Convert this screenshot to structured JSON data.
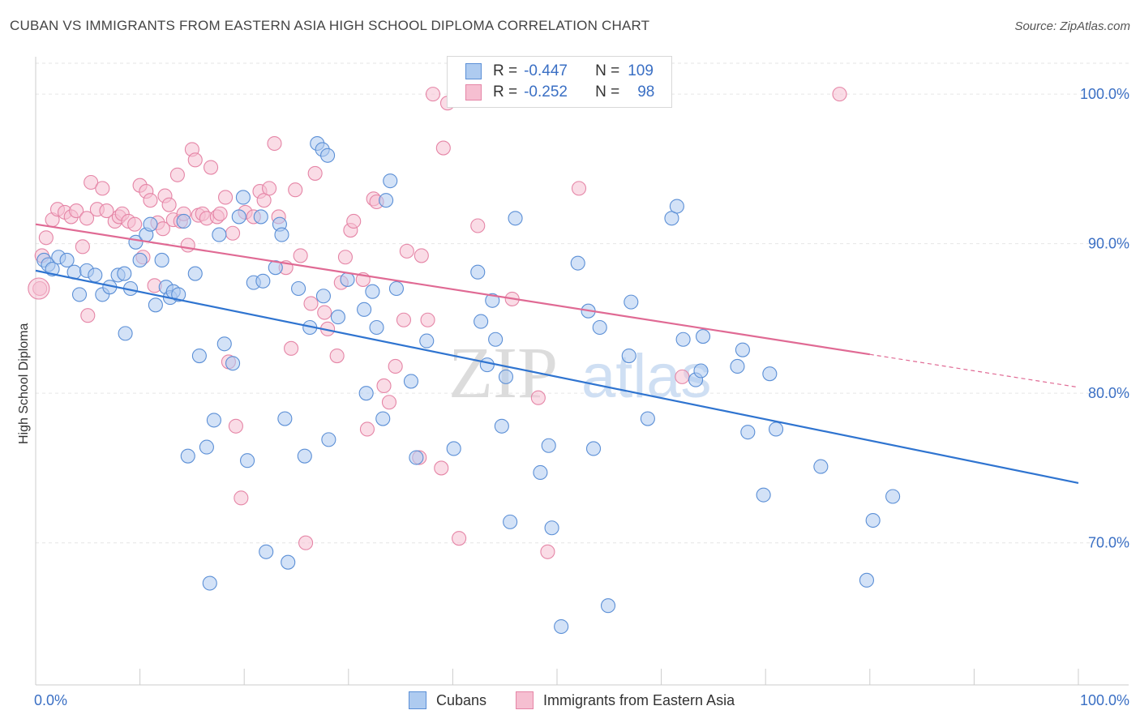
{
  "title": "CUBAN VS IMMIGRANTS FROM EASTERN ASIA HIGH SCHOOL DIPLOMA CORRELATION CHART",
  "source": "Source: ZipAtlas.com",
  "watermark": {
    "zip": "ZIP",
    "atlas": "atlas"
  },
  "legend": {
    "rows": [
      {
        "r_label": "R =",
        "r_value": "-0.447",
        "n_label": "N =",
        "n_value": "109"
      },
      {
        "r_label": "R =",
        "r_value": "-0.252",
        "n_label": "N =",
        "n_value": "98"
      }
    ]
  },
  "colors": {
    "blue_fill": "#aecbf0",
    "blue_stroke": "#5b8fd6",
    "blue_line": "#2f74d0",
    "pink_fill": "#f6bfd1",
    "pink_stroke": "#e585a6",
    "pink_line": "#e06a94",
    "grid": "#e6e6e6",
    "tick_label": "#3a6fc4"
  },
  "chart_data": {
    "type": "scatter",
    "title": "CUBAN VS IMMIGRANTS FROM EASTERN ASIA HIGH SCHOOL DIPLOMA CORRELATION CHART",
    "xlabel": "",
    "ylabel": "High School Diploma",
    "xlim": [
      0,
      100
    ],
    "ylim": [
      60.5,
      102.5
    ],
    "x_tick_labels": [
      "0.0%",
      "100.0%"
    ],
    "y_ticks": [
      70,
      80,
      90,
      100
    ],
    "y_tick_labels": [
      "70.0%",
      "80.0%",
      "90.0%",
      "100.0%"
    ],
    "grid": "horizontal dashed",
    "legend_placement": "bottom-center",
    "series": [
      {
        "name": "Cubans",
        "color": "#aecbf0",
        "trend": {
          "x": [
            0,
            100
          ],
          "y": [
            88.2,
            74.0
          ]
        },
        "points": [
          [
            0.8,
            88.9
          ],
          [
            1.2,
            88.6
          ],
          [
            1.6,
            88.3
          ],
          [
            2.2,
            89.1
          ],
          [
            3.0,
            88.9
          ],
          [
            3.7,
            88.1
          ],
          [
            4.2,
            86.6
          ],
          [
            4.9,
            88.2
          ],
          [
            5.7,
            87.9
          ],
          [
            6.4,
            86.6
          ],
          [
            7.1,
            87.1
          ],
          [
            7.9,
            87.9
          ],
          [
            8.5,
            88.0
          ],
          [
            8.6,
            84.0
          ],
          [
            9.1,
            87.0
          ],
          [
            9.6,
            90.1
          ],
          [
            10.0,
            88.9
          ],
          [
            10.6,
            90.6
          ],
          [
            11.0,
            91.3
          ],
          [
            11.5,
            85.9
          ],
          [
            12.1,
            88.9
          ],
          [
            12.5,
            87.1
          ],
          [
            12.9,
            86.4
          ],
          [
            13.2,
            86.8
          ],
          [
            13.7,
            86.6
          ],
          [
            14.2,
            91.5
          ],
          [
            14.6,
            75.8
          ],
          [
            15.3,
            88.0
          ],
          [
            15.7,
            82.5
          ],
          [
            16.4,
            76.4
          ],
          [
            16.7,
            67.3
          ],
          [
            17.1,
            78.2
          ],
          [
            17.6,
            90.6
          ],
          [
            18.1,
            83.3
          ],
          [
            18.9,
            82.0
          ],
          [
            19.5,
            91.8
          ],
          [
            19.9,
            93.1
          ],
          [
            20.3,
            75.5
          ],
          [
            20.9,
            87.4
          ],
          [
            21.8,
            87.5
          ],
          [
            21.6,
            91.8
          ],
          [
            22.1,
            69.4
          ],
          [
            23.0,
            88.4
          ],
          [
            23.4,
            91.3
          ],
          [
            23.6,
            90.6
          ],
          [
            23.9,
            78.3
          ],
          [
            24.2,
            68.7
          ],
          [
            25.2,
            87.0
          ],
          [
            25.8,
            75.8
          ],
          [
            26.3,
            84.4
          ],
          [
            27.0,
            96.7
          ],
          [
            27.5,
            96.3
          ],
          [
            28.0,
            95.9
          ],
          [
            27.6,
            86.5
          ],
          [
            28.1,
            76.9
          ],
          [
            29.0,
            85.1
          ],
          [
            29.9,
            87.6
          ],
          [
            31.5,
            85.6
          ],
          [
            31.7,
            80.0
          ],
          [
            32.3,
            86.8
          ],
          [
            32.7,
            84.4
          ],
          [
            33.3,
            78.3
          ],
          [
            33.6,
            92.9
          ],
          [
            34.0,
            94.2
          ],
          [
            34.6,
            87.0
          ],
          [
            36.0,
            80.8
          ],
          [
            36.5,
            75.7
          ],
          [
            37.5,
            83.5
          ],
          [
            40.1,
            76.3
          ],
          [
            42.4,
            88.1
          ],
          [
            42.7,
            84.8
          ],
          [
            43.3,
            81.9
          ],
          [
            43.8,
            86.2
          ],
          [
            44.1,
            83.6
          ],
          [
            44.7,
            77.8
          ],
          [
            45.1,
            81.1
          ],
          [
            45.5,
            71.4
          ],
          [
            46.0,
            91.7
          ],
          [
            48.4,
            74.7
          ],
          [
            49.2,
            76.5
          ],
          [
            49.5,
            71.0
          ],
          [
            50.4,
            64.4
          ],
          [
            52.0,
            88.7
          ],
          [
            53.0,
            85.5
          ],
          [
            53.5,
            76.3
          ],
          [
            54.1,
            84.4
          ],
          [
            54.9,
            65.8
          ],
          [
            56.9,
            82.5
          ],
          [
            57.1,
            86.1
          ],
          [
            58.7,
            78.3
          ],
          [
            61.0,
            91.7
          ],
          [
            61.5,
            92.5
          ],
          [
            62.1,
            83.6
          ],
          [
            63.3,
            80.9
          ],
          [
            63.8,
            81.5
          ],
          [
            64.0,
            83.8
          ],
          [
            67.3,
            81.8
          ],
          [
            67.8,
            82.9
          ],
          [
            68.3,
            77.4
          ],
          [
            69.8,
            73.2
          ],
          [
            70.4,
            81.3
          ],
          [
            71.0,
            77.6
          ],
          [
            75.3,
            75.1
          ],
          [
            79.7,
            67.5
          ],
          [
            80.3,
            71.5
          ],
          [
            82.2,
            73.1
          ]
        ]
      },
      {
        "name": "Immigrants from Eastern Asia",
        "color": "#f6bfd1",
        "trend": {
          "x": [
            0,
            80
          ],
          "y": [
            91.3,
            82.6
          ]
        },
        "trend_dashed": {
          "x": [
            80,
            100
          ],
          "y": [
            82.6,
            80.4
          ]
        },
        "points": [
          [
            0.4,
            87.0
          ],
          [
            0.6,
            89.2
          ],
          [
            1.0,
            90.4
          ],
          [
            1.6,
            91.6
          ],
          [
            2.1,
            92.3
          ],
          [
            2.8,
            92.1
          ],
          [
            3.4,
            91.8
          ],
          [
            3.9,
            92.2
          ],
          [
            4.5,
            89.8
          ],
          [
            4.9,
            91.7
          ],
          [
            5.0,
            85.2
          ],
          [
            5.3,
            94.1
          ],
          [
            5.9,
            92.3
          ],
          [
            6.4,
            93.7
          ],
          [
            6.8,
            92.2
          ],
          [
            7.6,
            91.5
          ],
          [
            8.0,
            91.8
          ],
          [
            8.3,
            92.0
          ],
          [
            8.9,
            91.5
          ],
          [
            9.5,
            91.3
          ],
          [
            10.0,
            93.9
          ],
          [
            10.3,
            89.1
          ],
          [
            10.6,
            93.5
          ],
          [
            11.0,
            92.9
          ],
          [
            11.4,
            87.2
          ],
          [
            11.7,
            91.4
          ],
          [
            12.2,
            91.0
          ],
          [
            12.4,
            93.2
          ],
          [
            12.8,
            92.6
          ],
          [
            13.2,
            91.6
          ],
          [
            13.6,
            94.6
          ],
          [
            13.9,
            91.5
          ],
          [
            14.2,
            92.0
          ],
          [
            14.6,
            89.9
          ],
          [
            15.0,
            96.3
          ],
          [
            15.3,
            95.6
          ],
          [
            15.6,
            91.9
          ],
          [
            16.0,
            92.0
          ],
          [
            16.4,
            91.7
          ],
          [
            16.8,
            95.1
          ],
          [
            17.4,
            91.8
          ],
          [
            17.7,
            92.0
          ],
          [
            18.2,
            93.1
          ],
          [
            18.5,
            82.1
          ],
          [
            18.9,
            90.7
          ],
          [
            19.2,
            77.8
          ],
          [
            19.7,
            73.0
          ],
          [
            20.1,
            92.1
          ],
          [
            20.9,
            91.8
          ],
          [
            21.5,
            93.5
          ],
          [
            21.9,
            92.9
          ],
          [
            22.4,
            93.7
          ],
          [
            22.9,
            96.7
          ],
          [
            23.3,
            91.8
          ],
          [
            24.0,
            88.4
          ],
          [
            24.5,
            83.0
          ],
          [
            24.9,
            93.6
          ],
          [
            25.4,
            89.2
          ],
          [
            25.9,
            70.0
          ],
          [
            26.4,
            86.0
          ],
          [
            26.8,
            94.7
          ],
          [
            27.7,
            85.4
          ],
          [
            28.0,
            84.3
          ],
          [
            28.9,
            82.5
          ],
          [
            29.3,
            87.4
          ],
          [
            29.7,
            89.1
          ],
          [
            30.2,
            90.9
          ],
          [
            30.5,
            91.5
          ],
          [
            31.4,
            87.6
          ],
          [
            31.8,
            77.6
          ],
          [
            32.4,
            93.0
          ],
          [
            32.7,
            92.8
          ],
          [
            33.4,
            80.5
          ],
          [
            33.9,
            79.4
          ],
          [
            34.5,
            81.8
          ],
          [
            35.3,
            84.9
          ],
          [
            35.6,
            89.5
          ],
          [
            36.8,
            75.7
          ],
          [
            37.0,
            89.2
          ],
          [
            37.6,
            84.9
          ],
          [
            38.1,
            100.0
          ],
          [
            38.9,
            75.0
          ],
          [
            39.1,
            96.4
          ],
          [
            39.5,
            99.4
          ],
          [
            40.6,
            70.3
          ],
          [
            42.4,
            91.2
          ],
          [
            45.7,
            86.3
          ],
          [
            48.2,
            79.7
          ],
          [
            49.1,
            69.4
          ],
          [
            52.1,
            93.7
          ],
          [
            62.0,
            81.1
          ],
          [
            77.1,
            100.0
          ]
        ]
      }
    ]
  },
  "bottom_legend": {
    "items": [
      "Cubans",
      "Immigrants from Eastern Asia"
    ]
  }
}
